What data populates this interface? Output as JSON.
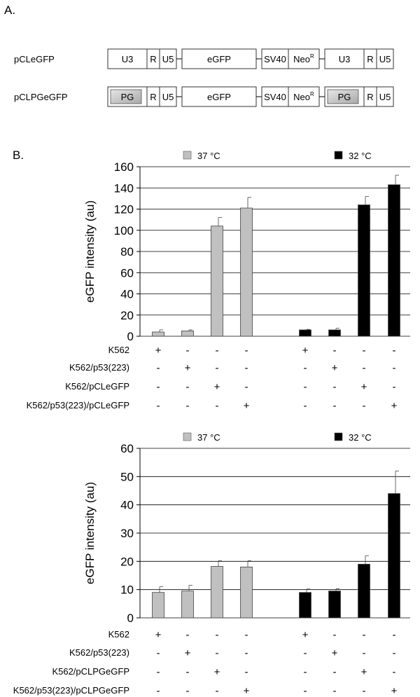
{
  "panel_a": {
    "label": "A.",
    "constructs": [
      {
        "name": "pCLeGFP",
        "segments": [
          {
            "label": "U3",
            "shaded": false
          },
          {
            "label": "R",
            "shaded": false
          },
          {
            "label": "U5",
            "shaded": false
          },
          {
            "label": "eGFP",
            "shaded": false
          },
          {
            "label": "SV40",
            "shaded": false
          },
          {
            "label": "Neo",
            "sup": "R",
            "shaded": false
          },
          {
            "label": "U3",
            "shaded": false
          },
          {
            "label": "R",
            "shaded": false
          },
          {
            "label": "U5",
            "shaded": false
          }
        ]
      },
      {
        "name": "pCLPGeGFP",
        "segments": [
          {
            "label": "PG",
            "shaded": true
          },
          {
            "label": "R",
            "shaded": false
          },
          {
            "label": "U5",
            "shaded": false
          },
          {
            "label": "eGFP",
            "shaded": false
          },
          {
            "label": "SV40",
            "shaded": false
          },
          {
            "label": "Neo",
            "sup": "R",
            "shaded": false
          },
          {
            "label": "PG",
            "shaded": true
          },
          {
            "label": "R",
            "shaded": false
          },
          {
            "label": "U5",
            "shaded": false
          }
        ]
      }
    ]
  },
  "panel_b": {
    "label": "B."
  },
  "colors": {
    "series_37": "#c0c0c0",
    "series_32": "#000000",
    "grid": "#000000",
    "shade_box": "#c8c8c8"
  },
  "chart_data": [
    {
      "type": "bar",
      "ylabel": "eGFP intensity (au)",
      "ylim": [
        0,
        160
      ],
      "yticks": [
        0,
        20,
        40,
        60,
        80,
        100,
        120,
        140,
        160
      ],
      "grid": true,
      "legend": "top",
      "legend_entries": [
        "37 °C",
        "32 °C"
      ],
      "series": [
        {
          "name": "37 °C",
          "values": [
            4,
            5,
            104,
            121
          ],
          "errors": [
            2,
            1,
            8,
            10
          ]
        },
        {
          "name": "32 °C",
          "values": [
            6,
            6,
            124,
            143
          ],
          "errors": [
            0.5,
            1.5,
            8,
            9
          ]
        }
      ],
      "condition_rows": [
        {
          "label": "K562",
          "signs": [
            "+",
            "-",
            "-",
            "-",
            "+",
            "-",
            "-",
            "-"
          ]
        },
        {
          "label": "K562/p53(223)",
          "signs": [
            "-",
            "+",
            "-",
            "-",
            "-",
            "+",
            "-",
            "-"
          ]
        },
        {
          "label": "K562/pCLeGFP",
          "signs": [
            "-",
            "-",
            "+",
            "-",
            "-",
            "-",
            "+",
            "-"
          ]
        },
        {
          "label": "K562/p53(223)/pCLeGFP",
          "signs": [
            "-",
            "-",
            "-",
            "+",
            "-",
            "-",
            "-",
            "+"
          ]
        }
      ]
    },
    {
      "type": "bar",
      "ylabel": "eGFP intensity (au)",
      "ylim": [
        0,
        60
      ],
      "yticks": [
        0,
        10,
        20,
        30,
        40,
        50,
        60
      ],
      "grid": true,
      "legend": "top",
      "legend_entries": [
        "37 °C",
        "32 °C"
      ],
      "series": [
        {
          "name": "37 °C",
          "values": [
            9,
            9.5,
            18.2,
            18
          ],
          "errors": [
            2,
            2,
            2,
            2.2
          ]
        },
        {
          "name": "32 °C",
          "values": [
            9,
            9.5,
            19,
            44
          ],
          "errors": [
            1.2,
            0.8,
            3,
            8
          ]
        }
      ],
      "condition_rows": [
        {
          "label": "K562",
          "signs": [
            "+",
            "-",
            "-",
            "-",
            "+",
            "-",
            "-",
            "-"
          ]
        },
        {
          "label": "K562/p53(223)",
          "signs": [
            "-",
            "+",
            "-",
            "-",
            "-",
            "+",
            "-",
            "-"
          ]
        },
        {
          "label": "K562/pCLPGeGFP",
          "signs": [
            "-",
            "-",
            "+",
            "-",
            "-",
            "-",
            "+",
            "-"
          ]
        },
        {
          "label": "K562/p53(223)/pCLPGeGFP",
          "signs": [
            "-",
            "-",
            "-",
            "+",
            "-",
            "-",
            "-",
            "+"
          ]
        }
      ]
    }
  ]
}
